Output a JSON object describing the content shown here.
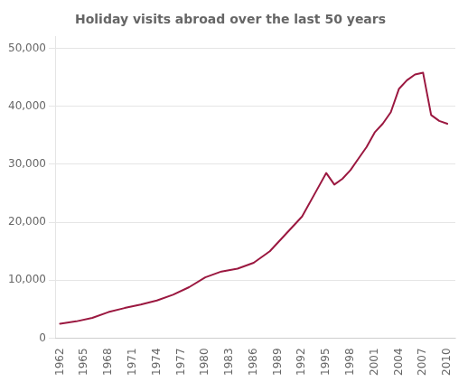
{
  "chart_data": {
    "type": "line",
    "title": "Holiday visits abroad over the last 50 years",
    "x": [
      1962,
      1964,
      1966,
      1968,
      1970,
      1972,
      1974,
      1976,
      1978,
      1980,
      1982,
      1984,
      1986,
      1988,
      1990,
      1992,
      1994,
      1995,
      1996,
      1997,
      1998,
      1999,
      2000,
      2001,
      2002,
      2003,
      2004,
      2005,
      2006,
      2007,
      2008,
      2009,
      2010
    ],
    "values": [
      2500,
      2900,
      3500,
      4500,
      5200,
      5800,
      6500,
      7500,
      8800,
      10500,
      11500,
      12000,
      13000,
      15000,
      18000,
      21000,
      26000,
      28500,
      26500,
      27500,
      29000,
      31000,
      33000,
      35500,
      37000,
      39000,
      43000,
      44500,
      45500,
      45800,
      38500,
      37500,
      37000
    ],
    "color": "#9b1840",
    "xlim": [
      1961.5,
      2011
    ],
    "xticks": [
      1962,
      1965,
      1968,
      1971,
      1974,
      1977,
      1980,
      1983,
      1986,
      1989,
      1992,
      1995,
      1998,
      2001,
      2004,
      2007,
      2010
    ],
    "ylim": [
      0,
      52000
    ],
    "yticks": [
      0,
      {
        "value": 10000,
        "label": "10,000"
      },
      {
        "value": 20000,
        "label": "20,000"
      },
      {
        "value": 30000,
        "label": "30,000"
      },
      {
        "value": 40000,
        "label": "40,000"
      },
      {
        "value": 50000,
        "label": "50,000"
      }
    ],
    "grid": "y"
  }
}
